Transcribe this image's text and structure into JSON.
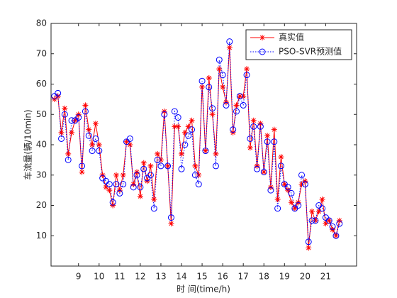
{
  "chart_data": {
    "type": "line",
    "xlabel": "时 间(time/h)",
    "ylabel": "车流量(辆/10min)",
    "x": [
      7.833,
      8,
      8.167,
      8.333,
      8.5,
      8.667,
      8.833,
      9,
      9.167,
      9.333,
      9.5,
      9.667,
      9.833,
      10,
      10.167,
      10.333,
      10.5,
      10.667,
      10.833,
      11,
      11.167,
      11.333,
      11.5,
      11.667,
      11.833,
      12,
      12.167,
      12.333,
      12.5,
      12.667,
      12.833,
      13,
      13.167,
      13.333,
      13.5,
      13.667,
      13.833,
      14,
      14.167,
      14.333,
      14.5,
      14.667,
      14.833,
      15,
      15.167,
      15.333,
      15.5,
      15.667,
      15.833,
      16,
      16.167,
      16.333,
      16.5,
      16.667,
      16.833,
      17,
      17.167,
      17.333,
      17.5,
      17.667,
      17.833,
      18,
      18.167,
      18.333,
      18.5,
      18.667,
      18.833,
      19,
      19.167,
      19.333,
      19.5,
      19.667,
      19.833,
      20,
      20.167,
      20.333,
      20.5,
      20.667,
      20.833,
      21,
      21.167,
      21.333,
      21.5,
      21.667
    ],
    "series": [
      {
        "name": "真实值",
        "color": "#ff0000",
        "marker": "asterisk",
        "linestyle": "solid",
        "values": [
          55,
          56,
          44,
          52,
          37,
          44,
          48,
          50,
          31,
          53,
          45,
          40,
          47,
          40,
          30,
          26,
          25,
          20,
          30,
          25,
          30,
          41,
          40,
          27,
          31,
          23,
          34,
          28,
          33,
          22,
          37,
          35,
          51,
          33,
          14,
          46,
          46,
          37,
          44,
          46,
          48,
          33,
          30,
          59,
          38,
          62,
          50,
          37,
          65,
          59,
          54,
          72,
          44,
          53,
          56,
          56,
          65,
          39,
          48,
          33,
          47,
          31,
          43,
          26,
          45,
          22,
          36,
          27,
          25,
          21,
          19,
          21,
          27,
          28,
          6,
          18,
          15,
          18,
          22,
          14,
          15,
          12,
          10,
          15
        ]
      },
      {
        "name": "PSO-SVR预测值",
        "color": "#0000ff",
        "marker": "circle",
        "linestyle": "dotted",
        "values": [
          56,
          57,
          42,
          50,
          35,
          48,
          48,
          49,
          33,
          51,
          43,
          38,
          42,
          38,
          29,
          28,
          27,
          21,
          27,
          24,
          27,
          41,
          42,
          26,
          30,
          26,
          32,
          29,
          30,
          19,
          35,
          33,
          50,
          33,
          16,
          51,
          49,
          32,
          40,
          43,
          45,
          30,
          27,
          61,
          38,
          59,
          52,
          33,
          68,
          63,
          53,
          74,
          45,
          51,
          56,
          53,
          63,
          42,
          46,
          32,
          46,
          31,
          41,
          25,
          41,
          19,
          33,
          27,
          26,
          24,
          19,
          20,
          30,
          27,
          8,
          15,
          15,
          20,
          19,
          16,
          15,
          13,
          10,
          14
        ]
      }
    ],
    "xlim": [
      7.667,
      22.5
    ],
    "ylim": [
      0,
      80
    ],
    "xticks": [
      9,
      10,
      11,
      12,
      13,
      14,
      15,
      16,
      17,
      18,
      19,
      20,
      21
    ],
    "yticks": [
      10,
      20,
      30,
      40,
      50,
      60,
      70,
      80
    ],
    "legend": "upper right"
  }
}
